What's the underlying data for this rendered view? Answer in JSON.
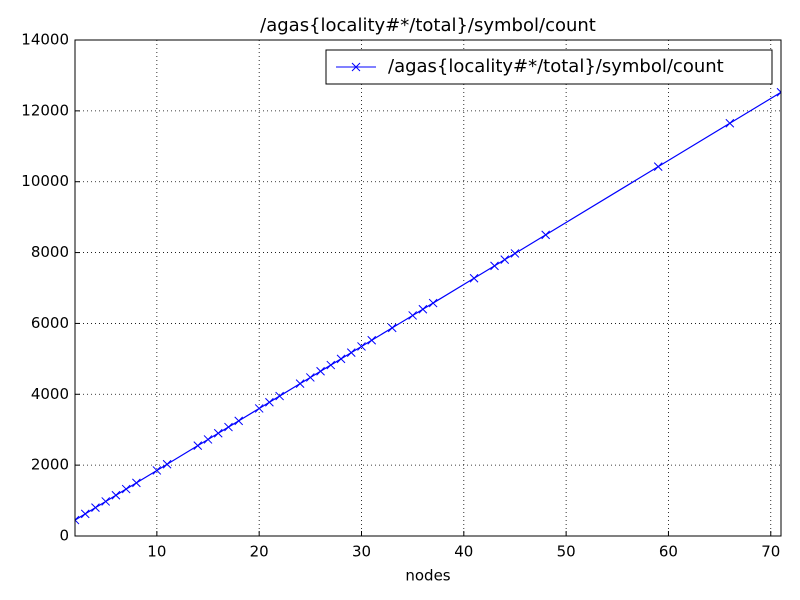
{
  "chart_data": {
    "type": "line",
    "title": "/agas{locality#*/total}/symbol/count",
    "x_label": "nodes",
    "x": [
      2,
      3,
      4,
      5,
      6,
      7,
      8,
      10,
      11,
      14,
      15,
      16,
      17,
      18,
      20,
      21,
      22,
      24,
      25,
      26,
      27,
      28,
      29,
      30,
      31,
      33,
      35,
      36,
      37,
      41,
      43,
      44,
      45,
      48,
      59,
      66,
      71
    ],
    "series": [
      {
        "name": "/agas{locality#*/total}/symbol/count",
        "color": "#0000ff",
        "values": [
          450,
          625,
          800,
          975,
          1150,
          1325,
          1500,
          1850,
          2025,
          2550,
          2725,
          2900,
          3075,
          3250,
          3600,
          3775,
          3950,
          4300,
          4475,
          4650,
          4825,
          5000,
          5175,
          5350,
          5525,
          5875,
          6225,
          6400,
          6575,
          7275,
          7625,
          7800,
          7975,
          8500,
          10425,
          11650,
          12525
        ]
      }
    ],
    "xlim": [
      2,
      71
    ],
    "xticks": [
      10,
      20,
      30,
      40,
      50,
      60,
      70
    ],
    "ylim": [
      0,
      14000
    ],
    "yticks": [
      0,
      2000,
      4000,
      6000,
      8000,
      10000,
      12000,
      14000
    ],
    "grid": true,
    "legend": "upper-right",
    "marker": "x"
  }
}
